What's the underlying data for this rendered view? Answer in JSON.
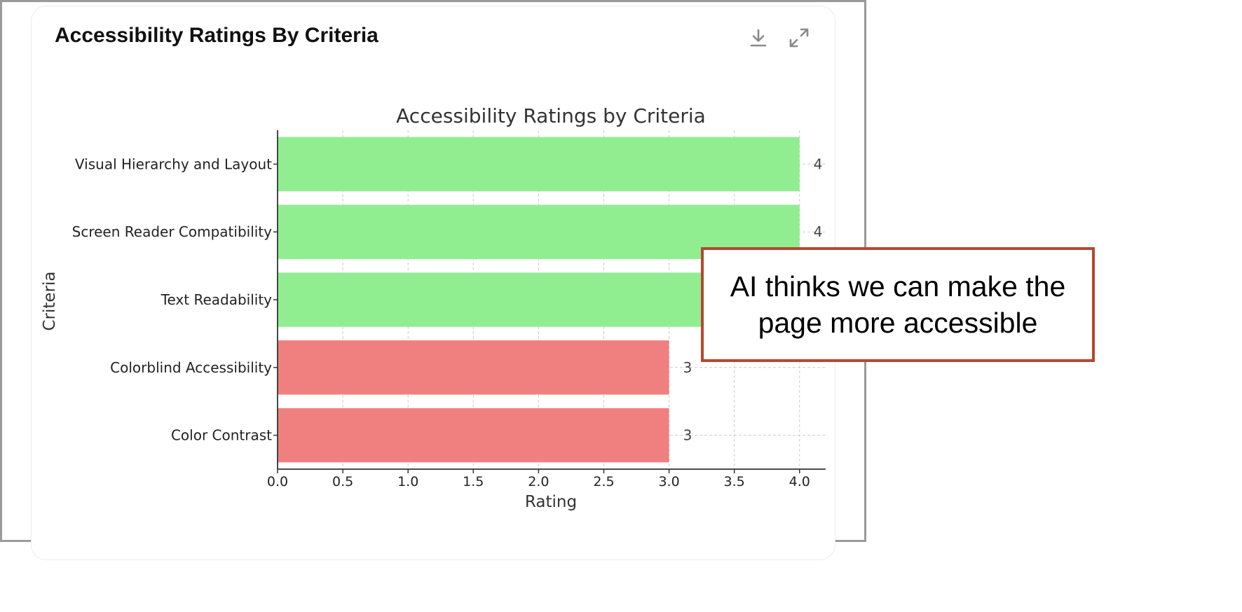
{
  "card": {
    "title": "Accessibility Ratings By Criteria",
    "download_icon": "download-icon",
    "expand_icon": "expand-icon"
  },
  "callout": {
    "line1": "AI thinks we can make the",
    "line2": "page more accessible",
    "border_color": "#b7472f"
  },
  "chart_data": {
    "type": "bar",
    "orientation": "horizontal",
    "title": "Accessibility Ratings by Criteria",
    "xlabel": "Rating",
    "ylabel": "Criteria",
    "xlim": [
      0,
      4.2
    ],
    "x_ticks": [
      "0.0",
      "0.5",
      "1.0",
      "1.5",
      "2.0",
      "2.5",
      "3.0",
      "3.5",
      "4.0"
    ],
    "grid": true,
    "categories": [
      "Visual Hierarchy and Layout",
      "Screen Reader Compatibility",
      "Text Readability",
      "Colorblind Accessibility",
      "Color Contrast"
    ],
    "values": [
      4,
      4,
      4,
      3,
      3
    ],
    "data_labels": [
      "4",
      "4",
      "4",
      "3",
      "3"
    ],
    "colors": [
      "#90ee90",
      "#90ee90",
      "#90ee90",
      "#f08080",
      "#f08080"
    ]
  }
}
